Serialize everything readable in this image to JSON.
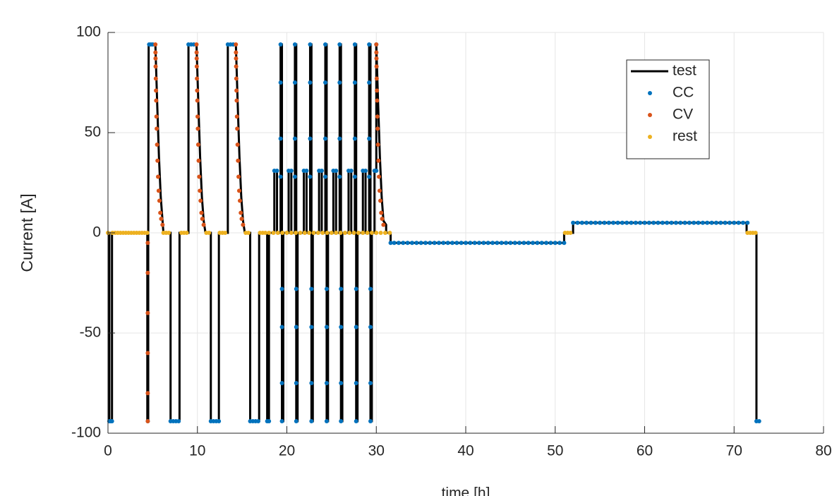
{
  "chart_data": {
    "type": "line",
    "xlabel": "time [h]",
    "ylabel": "Current [A]",
    "xlim": [
      0,
      80
    ],
    "ylim": [
      -100,
      100
    ],
    "xticks": [
      0,
      10,
      20,
      30,
      40,
      50,
      60,
      70,
      80
    ],
    "yticks": [
      -100,
      -50,
      0,
      50,
      100
    ],
    "grid": true,
    "legend": "northeast",
    "series": [
      {
        "name": "test",
        "color": "#000000",
        "style": "line",
        "x": [
          0,
          0.15,
          0.15,
          0.45,
          0.45,
          4.4,
          4.4,
          4.5,
          4.5,
          4.55,
          5.3,
          5.5,
          5.7,
          5.9,
          6.1,
          6.2,
          7,
          7,
          8,
          8,
          9,
          9,
          9.9,
          10.1,
          10.3,
          10.5,
          10.7,
          10.9,
          11.5,
          11.5,
          12.4,
          12.4,
          13.4,
          13.4,
          14.3,
          14.5,
          14.7,
          14.9,
          15.1,
          15.3,
          15.9,
          15.9,
          16.9,
          16.9,
          17.8,
          17.8,
          18,
          18,
          18.6,
          18.6,
          18.9,
          18.9,
          19.3,
          19.3,
          19.45,
          19.45,
          19.6,
          19.6,
          20.2,
          20.2,
          20.5,
          20.5,
          20.9,
          20.9,
          21.05,
          21.05,
          21.2,
          21.2,
          21.9,
          21.9,
          22.2,
          22.2,
          22.6,
          22.6,
          22.75,
          22.75,
          22.9,
          22.9,
          23.6,
          23.6,
          23.9,
          23.9,
          24.3,
          24.3,
          24.45,
          24.45,
          24.6,
          24.6,
          25.2,
          25.2,
          25.5,
          25.5,
          25.9,
          25.9,
          26.05,
          26.05,
          26.2,
          26.2,
          26.9,
          26.9,
          27.2,
          27.2,
          27.6,
          27.6,
          27.75,
          27.75,
          27.9,
          27.9,
          28.5,
          28.5,
          28.8,
          28.8,
          29.2,
          29.2,
          29.35,
          29.35,
          29.5,
          29.5,
          29.8,
          29.8,
          30,
          30,
          30.2,
          30.4,
          30.6,
          30.8,
          31.1,
          31.1,
          31.6,
          31.6,
          51,
          51,
          52,
          52,
          71.4,
          71.4,
          72.5,
          72.5,
          73
        ],
        "values": [
          0,
          0,
          -94,
          -94,
          0,
          0,
          -94,
          -94,
          -5,
          94,
          94,
          65,
          38,
          18,
          6,
          0,
          0,
          -94,
          -94,
          0,
          0,
          94,
          94,
          65,
          38,
          18,
          6,
          0,
          0,
          -94,
          -94,
          0,
          0,
          94,
          94,
          65,
          38,
          18,
          6,
          0,
          0,
          -94,
          -94,
          0,
          0,
          -94,
          -94,
          0,
          0,
          31,
          31,
          0,
          0,
          94,
          94,
          -94,
          -94,
          0,
          0,
          31,
          31,
          0,
          0,
          94,
          94,
          -94,
          -94,
          0,
          0,
          31,
          31,
          0,
          0,
          94,
          94,
          -94,
          -94,
          0,
          0,
          31,
          31,
          0,
          0,
          94,
          94,
          -94,
          -94,
          0,
          0,
          31,
          31,
          0,
          0,
          94,
          94,
          -94,
          -94,
          0,
          0,
          31,
          31,
          0,
          0,
          94,
          94,
          -94,
          -94,
          0,
          0,
          31,
          31,
          0,
          0,
          94,
          94,
          -94,
          -94,
          0,
          0,
          31,
          31,
          94,
          65,
          38,
          18,
          6,
          4,
          0,
          0,
          -5,
          -5,
          0,
          0,
          5,
          5,
          0,
          0,
          -94,
          -94
        ]
      },
      {
        "name": "CC",
        "color": "#0072BD",
        "style": "dots",
        "x": [
          0.15,
          0.3,
          0.45,
          4.45,
          4.6,
          4.8,
          5.0,
          7,
          7.3,
          7.6,
          7.9,
          9,
          9.3,
          9.6,
          11.5,
          11.8,
          12.1,
          12.4,
          13.4,
          13.7,
          14,
          15.9,
          16.2,
          16.5,
          16.8,
          17.8,
          18,
          18.6,
          18.9,
          19.3,
          19.3,
          19.3,
          19.3,
          19.45,
          19.45,
          19.45,
          19.45,
          20.2,
          20.5,
          20.9,
          20.9,
          20.9,
          20.9,
          21.05,
          21.05,
          21.05,
          21.05,
          21.9,
          22.2,
          22.6,
          22.6,
          22.6,
          22.6,
          22.75,
          22.75,
          22.75,
          22.75,
          23.6,
          23.9,
          24.3,
          24.3,
          24.3,
          24.3,
          24.45,
          24.45,
          24.45,
          24.45,
          25.2,
          25.5,
          25.9,
          25.9,
          25.9,
          25.9,
          26.05,
          26.05,
          26.05,
          26.05,
          26.9,
          27.2,
          27.6,
          27.6,
          27.6,
          27.6,
          27.75,
          27.75,
          27.75,
          27.75,
          28.5,
          28.8,
          29.2,
          29.2,
          29.2,
          29.2,
          29.35,
          29.35,
          29.35,
          29.35,
          29.8,
          30,
          30,
          31.6,
          32,
          32.5,
          33,
          33.5,
          34,
          34.5,
          35,
          35.5,
          36,
          36.5,
          37,
          37.5,
          38,
          38.5,
          39,
          39.5,
          40,
          40.5,
          41,
          41.5,
          42,
          42.5,
          43,
          43.5,
          44,
          44.5,
          45,
          45.5,
          46,
          46.5,
          47,
          47.5,
          48,
          48.5,
          49,
          49.5,
          50,
          50.5,
          51,
          52,
          52.5,
          53,
          53.5,
          54,
          54.5,
          55,
          55.5,
          56,
          56.5,
          57,
          57.5,
          58,
          58.5,
          59,
          59.5,
          60,
          60.5,
          61,
          61.5,
          62,
          62.5,
          63,
          63.5,
          64,
          64.5,
          65,
          65.5,
          66,
          66.5,
          67,
          67.5,
          68,
          68.5,
          69,
          69.5,
          70,
          70.5,
          71,
          71.5,
          72.5,
          72.8
        ],
        "values": [
          -94,
          -94,
          -94,
          -94,
          94,
          94,
          94,
          -94,
          -94,
          -94,
          -94,
          94,
          94,
          94,
          -94,
          -94,
          -94,
          -94,
          94,
          94,
          94,
          -94,
          -94,
          -94,
          -94,
          -94,
          -94,
          31,
          31,
          94,
          75,
          47,
          28,
          -28,
          -47,
          -75,
          -94,
          31,
          31,
          94,
          75,
          47,
          28,
          -28,
          -47,
          -75,
          -94,
          31,
          31,
          94,
          75,
          47,
          28,
          -28,
          -47,
          -75,
          -94,
          31,
          31,
          94,
          75,
          47,
          28,
          -28,
          -47,
          -75,
          -94,
          31,
          31,
          94,
          75,
          47,
          28,
          -28,
          -47,
          -75,
          -94,
          31,
          31,
          94,
          75,
          47,
          28,
          -28,
          -47,
          -75,
          -94,
          31,
          31,
          94,
          75,
          47,
          28,
          -28,
          -47,
          -75,
          -94,
          31,
          31,
          94,
          -5,
          -5,
          -5,
          -5,
          -5,
          -5,
          -5,
          -5,
          -5,
          -5,
          -5,
          -5,
          -5,
          -5,
          -5,
          -5,
          -5,
          -5,
          -5,
          -5,
          -5,
          -5,
          -5,
          -5,
          -5,
          -5,
          -5,
          -5,
          -5,
          -5,
          -5,
          -5,
          -5,
          -5,
          -5,
          -5,
          -5,
          -5,
          -5,
          -5,
          5,
          5,
          5,
          5,
          5,
          5,
          5,
          5,
          5,
          5,
          5,
          5,
          5,
          5,
          5,
          5,
          5,
          5,
          5,
          5,
          5,
          5,
          5,
          5,
          5,
          5,
          5,
          5,
          5,
          5,
          5,
          5,
          5,
          5,
          5,
          5,
          5,
          5,
          5,
          5,
          -94,
          -94
        ]
      },
      {
        "name": "CV",
        "color": "#D95319",
        "style": "dots",
        "x": [
          4.45,
          4.45,
          4.45,
          4.45,
          4.45,
          4.45,
          5.3,
          5.31,
          5.32,
          5.33,
          5.35,
          5.37,
          5.39,
          5.42,
          5.45,
          5.49,
          5.54,
          5.6,
          5.67,
          5.75,
          5.85,
          5.95,
          6.1,
          9.9,
          9.91,
          9.92,
          9.93,
          9.95,
          9.97,
          9.99,
          10.02,
          10.05,
          10.09,
          10.14,
          10.2,
          10.27,
          10.35,
          10.45,
          10.55,
          10.7,
          14.3,
          14.31,
          14.32,
          14.33,
          14.35,
          14.37,
          14.39,
          14.42,
          14.45,
          14.49,
          14.54,
          14.6,
          14.67,
          14.75,
          14.85,
          14.95,
          15.1,
          30,
          30.01,
          30.02,
          30.03,
          30.05,
          30.07,
          30.09,
          30.12,
          30.15,
          30.19,
          30.24,
          30.3,
          30.37,
          30.45,
          30.55,
          30.65,
          30.8
        ],
        "values": [
          -94,
          -80,
          -60,
          -40,
          -20,
          -5,
          94,
          90,
          87,
          83,
          77,
          71,
          66,
          58,
          52,
          44,
          36,
          28,
          21,
          16,
          10,
          7,
          4,
          94,
          90,
          87,
          83,
          77,
          71,
          66,
          58,
          52,
          44,
          36,
          28,
          21,
          16,
          10,
          7,
          4,
          94,
          90,
          87,
          83,
          77,
          71,
          66,
          58,
          52,
          44,
          36,
          28,
          21,
          16,
          10,
          7,
          4,
          94,
          90,
          87,
          83,
          77,
          71,
          66,
          58,
          52,
          44,
          36,
          28,
          21,
          16,
          10,
          7,
          4
        ]
      },
      {
        "name": "rest",
        "color": "#EDB120",
        "style": "dots",
        "x": [
          0,
          0.5,
          0.8,
          1.1,
          1.4,
          1.7,
          2.0,
          2.3,
          2.6,
          2.9,
          3.2,
          3.5,
          3.8,
          4.1,
          4.4,
          6.2,
          6.5,
          6.8,
          8.2,
          8.5,
          8.8,
          11,
          11.3,
          12.5,
          12.8,
          13.1,
          15.4,
          15.7,
          17,
          17.3,
          17.6,
          18,
          18.5,
          19,
          19.5,
          20,
          20.5,
          21,
          21.5,
          22,
          22.5,
          23,
          23.5,
          24,
          24.5,
          25,
          25.5,
          26,
          26.5,
          27,
          27.5,
          28,
          28.5,
          29,
          29.5,
          30,
          30.5,
          31,
          31.5,
          51.1,
          51.4,
          51.7,
          71.5,
          71.8,
          72.1,
          72.4
        ],
        "values": [
          0,
          0,
          0,
          0,
          0,
          0,
          0,
          0,
          0,
          0,
          0,
          0,
          0,
          0,
          0,
          0,
          0,
          0,
          0,
          0,
          0,
          0,
          0,
          0,
          0,
          0,
          0,
          0,
          0,
          0,
          0,
          0,
          0,
          0,
          0,
          0,
          0,
          0,
          0,
          0,
          0,
          0,
          0,
          0,
          0,
          0,
          0,
          0,
          0,
          0,
          0,
          0,
          0,
          0,
          0,
          0,
          0,
          0,
          0,
          0,
          0,
          0,
          0,
          0,
          0,
          0
        ]
      }
    ]
  }
}
